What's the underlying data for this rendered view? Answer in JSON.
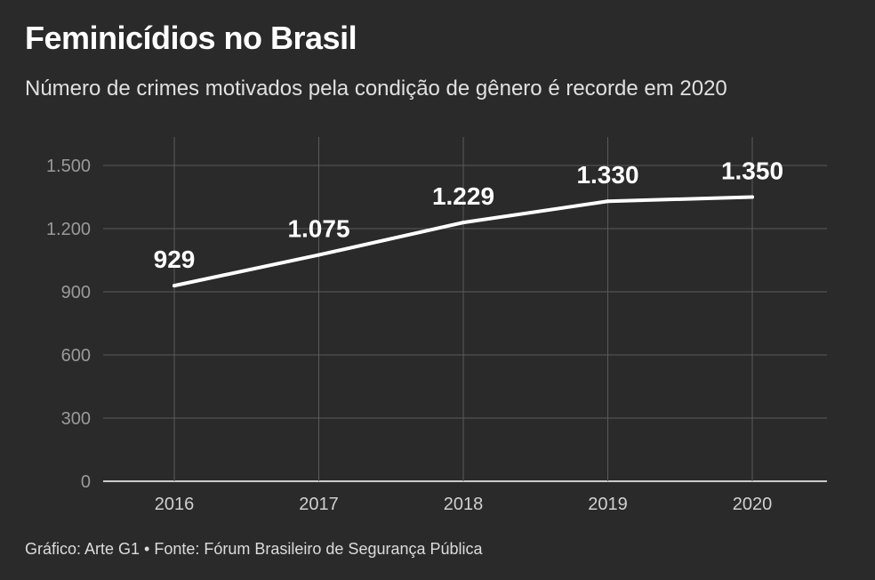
{
  "header": {
    "title": "Feminicídios no Brasil",
    "subtitle": "Número de crimes motivados pela condição de gênero é recorde em 2020"
  },
  "footer": {
    "source": "Gráfico: Arte G1 • Fonte: Fórum Brasileiro de Segurança Pública"
  },
  "colors": {
    "background": "#2a2a2a",
    "line": "#ffffff",
    "grid": "#5a5a5a"
  },
  "chart_data": {
    "type": "line",
    "title": "Feminicídios no Brasil",
    "subtitle": "Número de crimes motivados pela condição de gênero é recorde em 2020",
    "xlabel": "",
    "ylabel": "",
    "categories": [
      "2016",
      "2017",
      "2018",
      "2019",
      "2020"
    ],
    "values": [
      929,
      1075,
      1229,
      1330,
      1350
    ],
    "data_labels": [
      "929",
      "1.075",
      "1.229",
      "1.330",
      "1.350"
    ],
    "ylim": [
      0,
      1500
    ],
    "yticks": [
      0,
      300,
      600,
      900,
      1200,
      1500
    ],
    "ytick_labels": [
      "0",
      "300",
      "600",
      "900",
      "1.200",
      "1.500"
    ],
    "grid": true,
    "legend": "none"
  }
}
